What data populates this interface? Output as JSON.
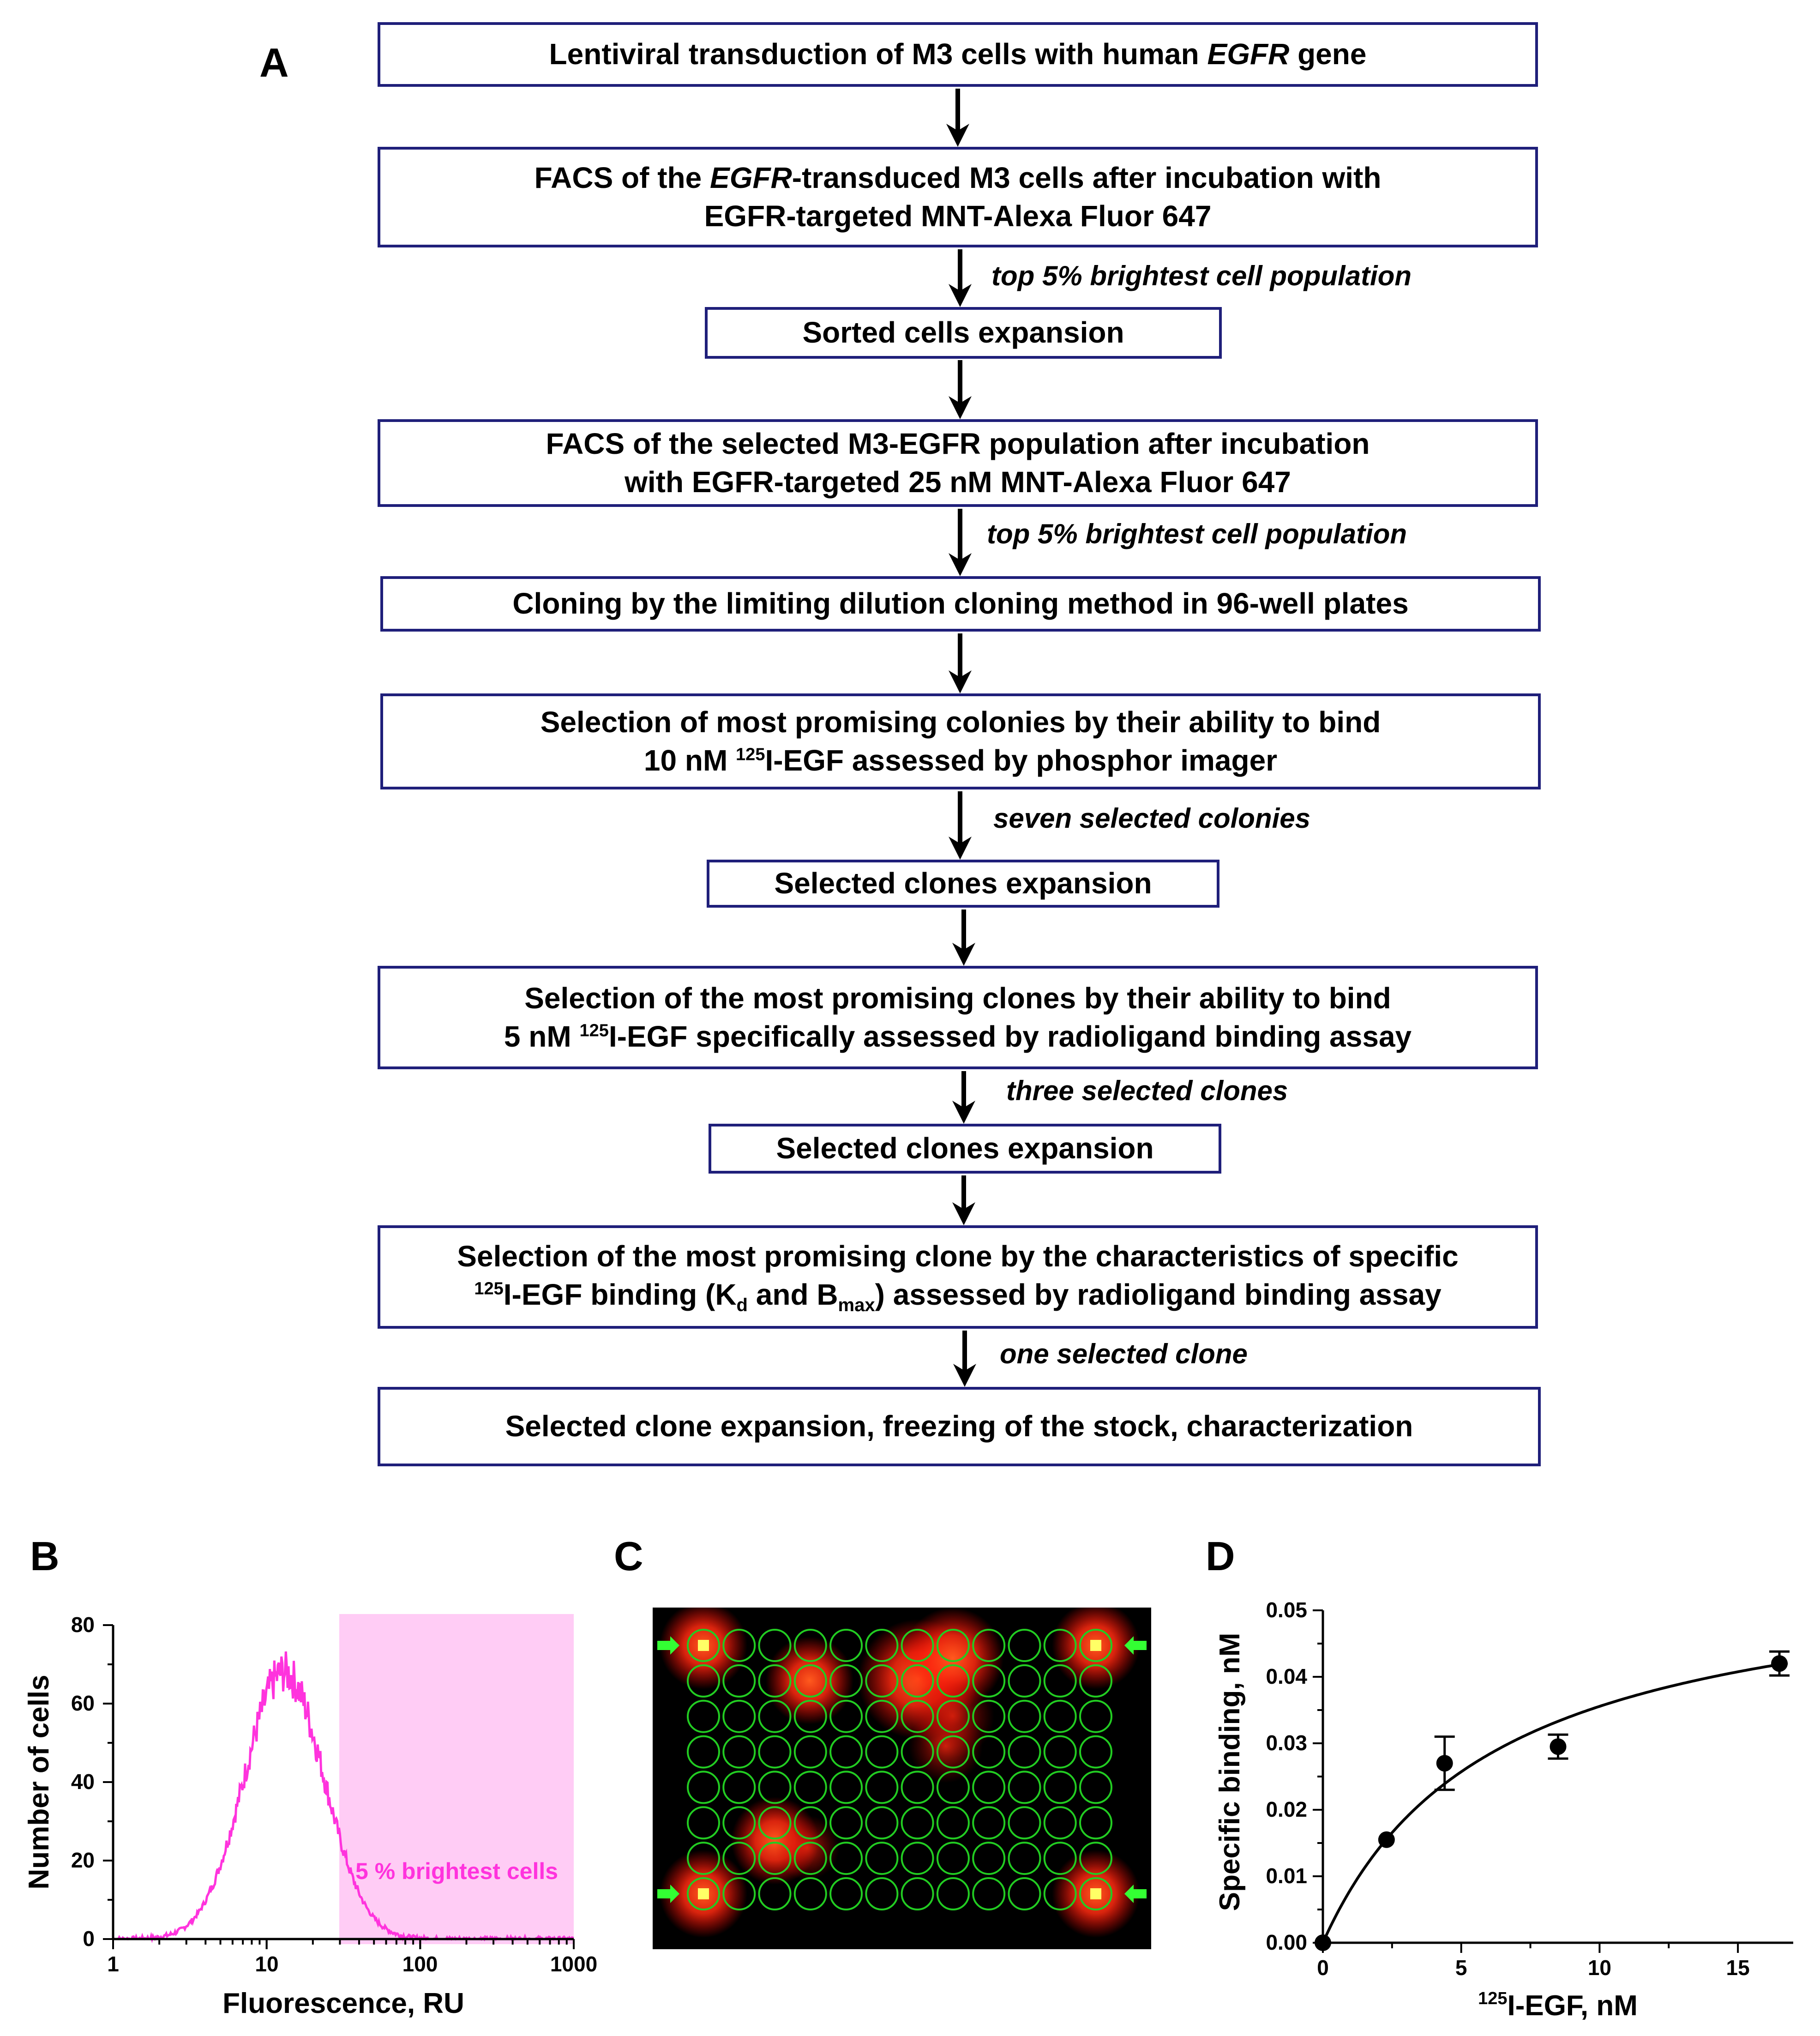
{
  "panels": {
    "a": "A",
    "b": "B",
    "c": "C",
    "d": "D"
  },
  "flow": {
    "box1": {
      "pre": "Lentiviral transduction of M3 cells with human ",
      "italic": "EGFR",
      "post": " gene"
    },
    "box2": {
      "pre": "FACS of the ",
      "italic": "EGFR",
      "post": "-transduced M3 cells after incubation with",
      "line2": "EGFR-targeted MNT-Alexa Fluor 647"
    },
    "note1": "top 5% brightest cell population",
    "box3": "Sorted cells expansion",
    "box4": {
      "line1": "FACS of the selected M3-EGFR population after incubation",
      "line2": "with EGFR-targeted 25 nM MNT-Alexa Fluor 647"
    },
    "note2": "top 5% brightest cell population",
    "box5": "Cloning by the limiting  dilution cloning method in 96-well plates",
    "box6": {
      "line1": "Selection of most promising colonies by their ability to bind",
      "line2_pre": "10 nM ",
      "sup": "125",
      "line2_post": "I-EGF assessed by phosphor imager"
    },
    "note3": "seven selected colonies",
    "box7": "Selected clones expansion",
    "box8": {
      "line1": "Selection of the most promising clones by their ability to bind",
      "line2_pre": "5 nM ",
      "sup": "125",
      "line2_post": "I-EGF specifically assessed by radioligand binding assay"
    },
    "note4": "three selected clones",
    "box9": "Selected clones expansion",
    "box10": {
      "line1": "Selection of the most promising clone by the characteristics of specific",
      "sup": "125",
      "pre": "I-EGF binding (K",
      "sub1": "d",
      "mid": " and B",
      "sub2": "max",
      "post": ") assessed by radioligand binding assay"
    },
    "note5": "one selected clone",
    "box11": "Selected clone expansion, freezing of the stock, characterization"
  },
  "histogram": {
    "xlabel": "Fluorescence, RU",
    "ylabel": "Number of cells",
    "xticks": [
      "1",
      "10",
      "100",
      "1000"
    ],
    "yticks": [
      "0",
      "20",
      "40",
      "60",
      "80"
    ],
    "annotation": "5 % brightest cells",
    "color": "#ff33dd",
    "shade_color": "#ffccf5"
  },
  "plate": {
    "rows": 8,
    "cols": 12,
    "background": "#000000",
    "well_color": "#22cc22",
    "arrow_color": "#33ff33"
  },
  "chart_data": {
    "type": "scatter",
    "title": "",
    "xlabel_sup": "125",
    "xlabel": "I-EGF, nM",
    "ylabel": "Specific binding, nM",
    "xlim": [
      0,
      17
    ],
    "ylim": [
      0,
      0.05
    ],
    "xticks": [
      "0",
      "5",
      "10",
      "15"
    ],
    "yticks": [
      "0.00",
      "0.01",
      "0.02",
      "0.03",
      "0.04",
      "0.05"
    ],
    "x": [
      0,
      2.3,
      4.4,
      8.5,
      16.5
    ],
    "y": [
      0,
      0.0155,
      0.027,
      0.0295,
      0.042
    ],
    "err": [
      0,
      0.0005,
      0.004,
      0.0018,
      0.0018
    ],
    "fit": {
      "model": "one-site",
      "bmax": 0.0576,
      "kd": 6.2
    }
  }
}
